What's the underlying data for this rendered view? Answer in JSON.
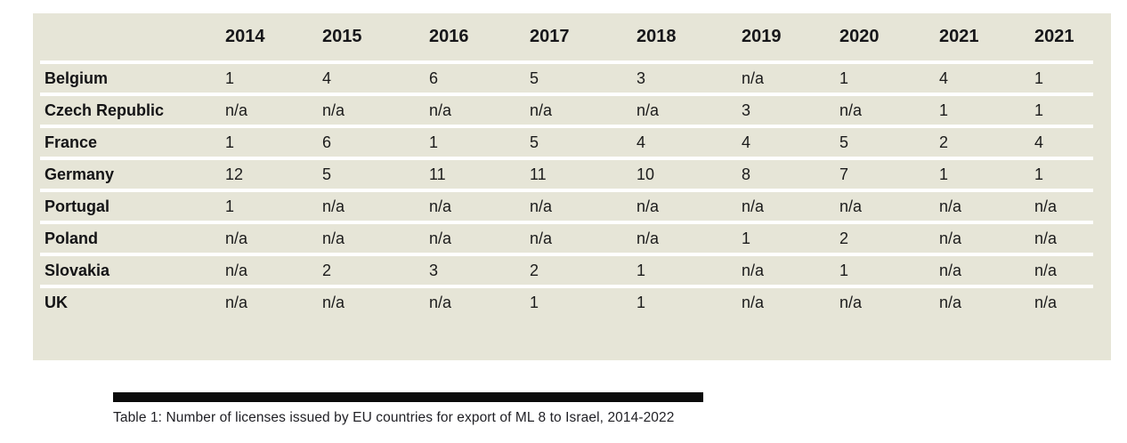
{
  "table": {
    "columns": [
      "",
      "2014",
      "2015",
      "2016",
      "2017",
      "2018",
      "2019",
      "2020",
      "2021",
      "2021"
    ],
    "rows": [
      {
        "label": "Belgium",
        "values": [
          "1",
          "4",
          "6",
          "5",
          "3",
          "n/a",
          "1",
          "4",
          "1"
        ]
      },
      {
        "label": "Czech Republic",
        "values": [
          "n/a",
          "n/a",
          "n/a",
          "n/a",
          "n/a",
          "3",
          "n/a",
          "1",
          "1"
        ]
      },
      {
        "label": "France",
        "values": [
          "1",
          "6",
          "1",
          "5",
          "4",
          "4",
          "5",
          "2",
          "4"
        ]
      },
      {
        "label": "Germany",
        "values": [
          "12",
          "5",
          "11",
          "11",
          "10",
          "8",
          "7",
          "1",
          "1"
        ]
      },
      {
        "label": "Portugal",
        "values": [
          "1",
          "n/a",
          "n/a",
          "n/a",
          "n/a",
          "n/a",
          "n/a",
          "n/a",
          "n/a"
        ]
      },
      {
        "label": "Poland",
        "values": [
          "n/a",
          "n/a",
          "n/a",
          "n/a",
          "n/a",
          "1",
          "2",
          "n/a",
          "n/a"
        ]
      },
      {
        "label": "Slovakia",
        "values": [
          "n/a",
          "2",
          "3",
          "2",
          "1",
          "n/a",
          "1",
          "n/a",
          "n/a"
        ]
      },
      {
        "label": "UK",
        "values": [
          "n/a",
          "n/a",
          "n/a",
          "1",
          "1",
          "n/a",
          "n/a",
          "n/a",
          "n/a"
        ]
      }
    ]
  },
  "caption": {
    "text": "Table 1: Number of licenses issued by EU countries for export of ML 8 to Israel, 2014-2022"
  },
  "colors": {
    "panel_background": "#e6e5d7",
    "row_separator": "#ffffff",
    "text": "#1b1b1b",
    "rule_bar": "#0b0b0b"
  }
}
